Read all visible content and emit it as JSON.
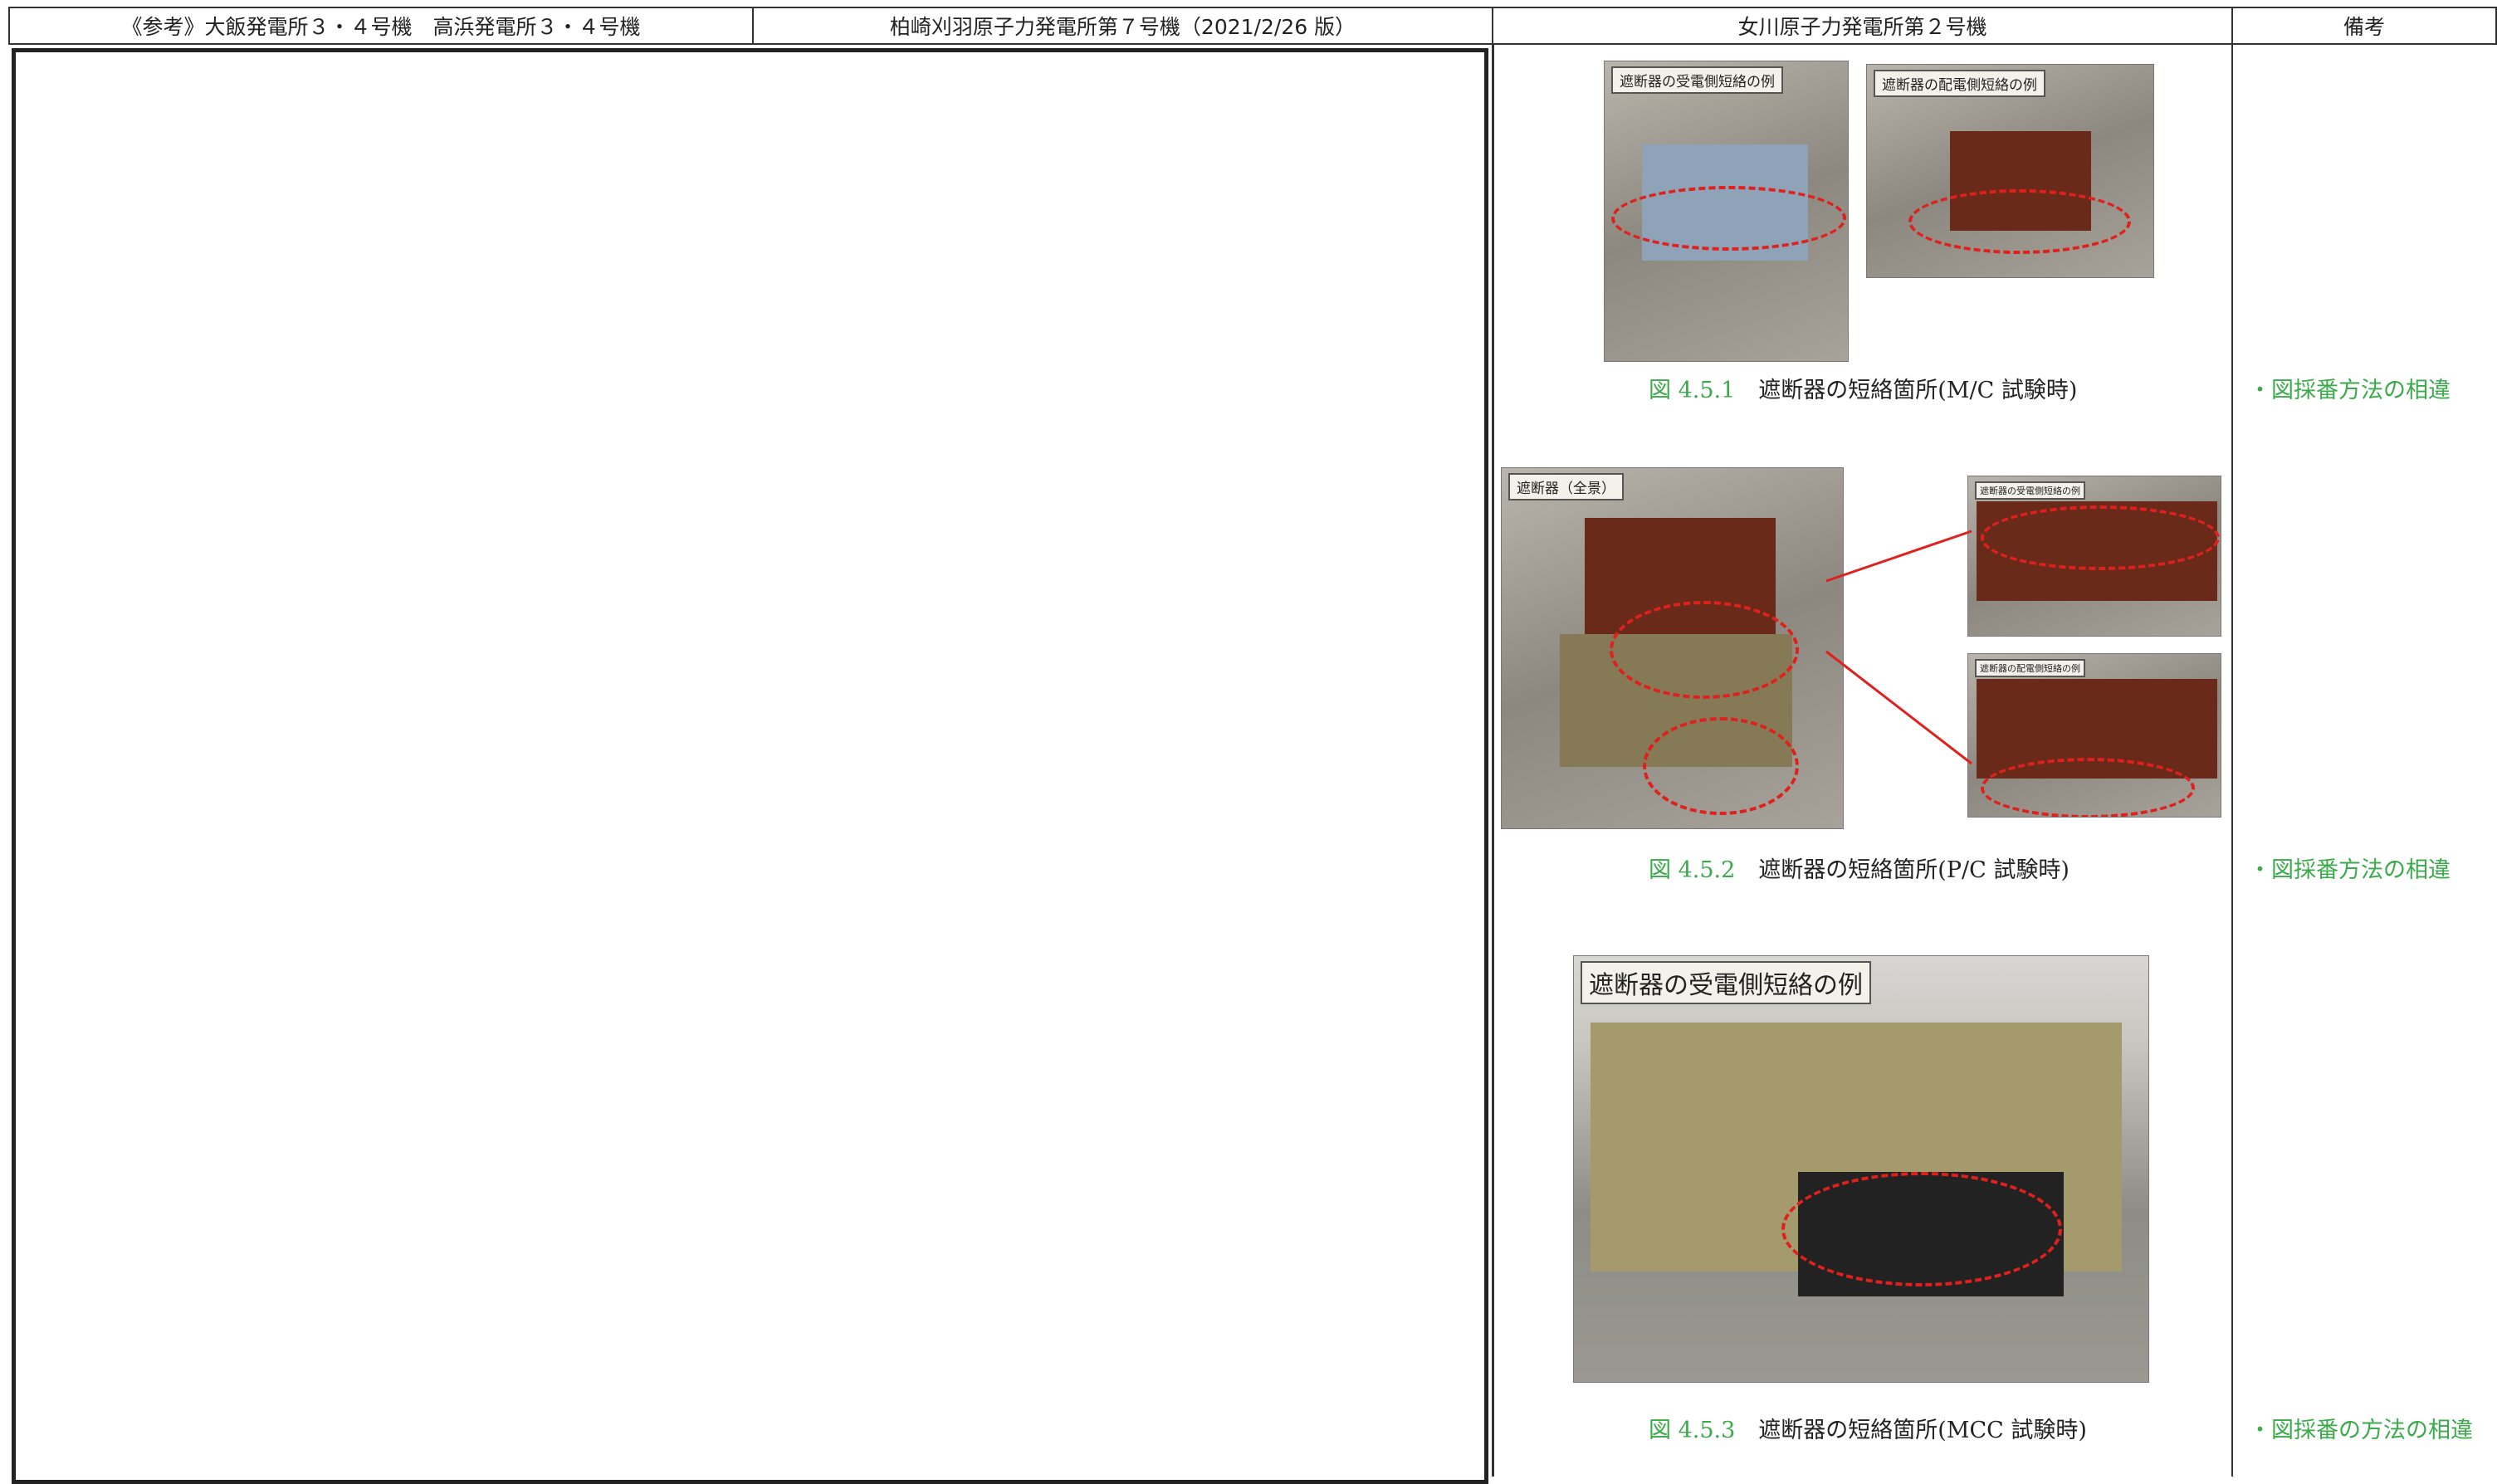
{
  "header": {
    "columns": [
      "《参考》大飯発電所３・４号機　高浜発電所３・４号機",
      "柏崎刈羽原子力発電所第７号機（2021/2/26 版）",
      "女川原子力発電所第２号機",
      "備考"
    ]
  },
  "figures": [
    {
      "photo_labels": [
        "遮断器の受電側短絡の例",
        "遮断器の配電側短絡の例"
      ],
      "number": "図 4.5.1",
      "caption": "遮断器の短絡箇所(M/C 試験時)",
      "remark": "・図採番方法の相違"
    },
    {
      "photo_labels": [
        "遮断器（全景）",
        "遮断器の受電側短絡の例",
        "遮断器の配電側短絡の例"
      ],
      "number": "図 4.5.2",
      "caption": "遮断器の短絡箇所(P/C 試験時)",
      "remark": "・図採番方法の相違"
    },
    {
      "photo_labels": [
        "遮断器の受電側短絡の例"
      ],
      "number": "図 4.5.3",
      "caption": "遮断器の短絡箇所(MCC 試験時)",
      "remark": "・図採番の方法の相違"
    }
  ]
}
